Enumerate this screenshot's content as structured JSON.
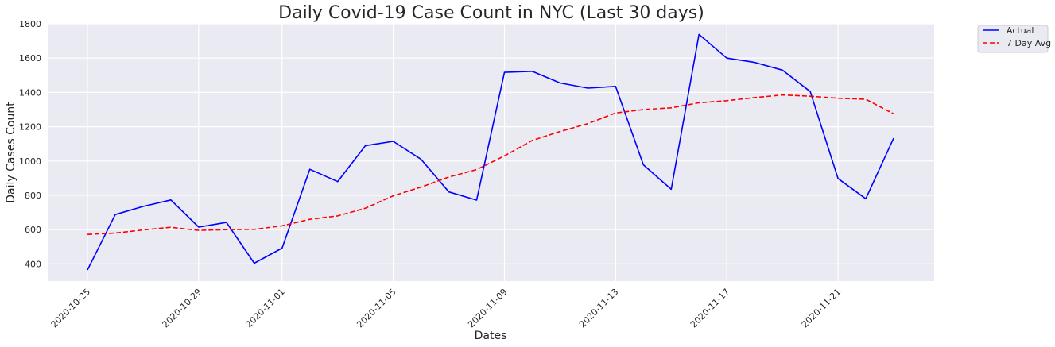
{
  "chart_data": {
    "type": "line",
    "title": "Daily Covid-19 Case Count in NYC (Last 30 days)",
    "xlabel": "Dates",
    "ylabel": "Daily Cases Count",
    "ylim": [
      300,
      1800
    ],
    "yticks": [
      400,
      600,
      800,
      1000,
      1200,
      1400,
      1600,
      1800
    ],
    "grid": true,
    "legend_position": "outside-top-right",
    "x": [
      "2020-10-25",
      "2020-10-26",
      "2020-10-27",
      "2020-10-28",
      "2020-10-29",
      "2020-10-30",
      "2020-10-31",
      "2020-11-01",
      "2020-11-02",
      "2020-11-03",
      "2020-11-04",
      "2020-11-05",
      "2020-11-06",
      "2020-11-07",
      "2020-11-08",
      "2020-11-09",
      "2020-11-10",
      "2020-11-11",
      "2020-11-12",
      "2020-11-13",
      "2020-11-14",
      "2020-11-15",
      "2020-11-16",
      "2020-11-17",
      "2020-11-18",
      "2020-11-19",
      "2020-11-20",
      "2020-11-21",
      "2020-11-22",
      "2020-11-23"
    ],
    "xtick_labels": [
      "2020-10-25",
      "2020-10-29",
      "2020-11-01",
      "2020-11-05",
      "2020-11-09",
      "2020-11-13",
      "2020-11-17",
      "2020-11-21"
    ],
    "series": [
      {
        "name": "Actual",
        "color": "#0000ff",
        "style": "solid",
        "values": [
          365,
          688,
          735,
          773,
          615,
          642,
          404,
          492,
          952,
          880,
          1090,
          1115,
          1010,
          820,
          772,
          1517,
          1523,
          1455,
          1425,
          1435,
          978,
          835,
          1738,
          1600,
          1575,
          1530,
          1405,
          898,
          780,
          1133
        ]
      },
      {
        "name": "7 Day Avg",
        "color": "#ff0000",
        "style": "dashed",
        "values": [
          572,
          580,
          598,
          614,
          596,
          600,
          602,
          622,
          660,
          680,
          725,
          797,
          848,
          907,
          950,
          1030,
          1120,
          1172,
          1218,
          1280,
          1300,
          1310,
          1340,
          1352,
          1370,
          1385,
          1378,
          1366,
          1360,
          1275
        ]
      }
    ]
  }
}
